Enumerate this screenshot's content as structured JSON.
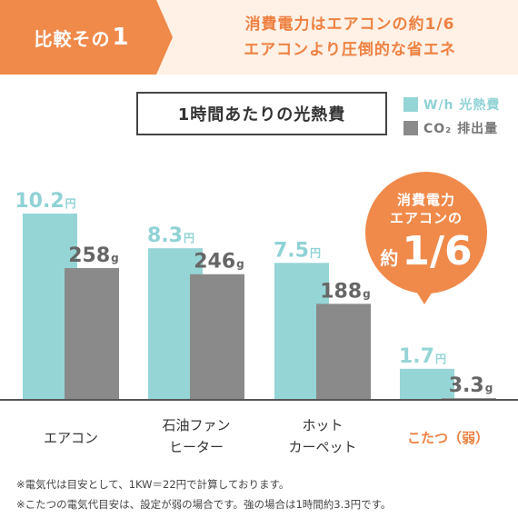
{
  "header": {
    "tag_text": "比較その",
    "tag_number": "1",
    "message_line1": "消費電力はエアコンの約1/6",
    "message_line2": "エアコンより圧倒的な省エネ"
  },
  "colors": {
    "accent": "#f08a4b",
    "teal": "#95d5d6",
    "gray": "#8a8a8a",
    "header_bg": "#fff1e6"
  },
  "callout": {
    "line1": "消費電力",
    "line2": "エアコンの",
    "prefix": "約",
    "big": "1/6"
  },
  "chart_data": {
    "type": "bar",
    "title": "1時間あたりの光熱費",
    "categories": [
      [
        "エアコン"
      ],
      [
        "石油ファン",
        "ヒーター"
      ],
      [
        "ホット",
        "カーペット"
      ],
      [
        "こたつ（弱）"
      ]
    ],
    "highlight_category_index": 3,
    "series": [
      {
        "name": "W/h 光熱費",
        "color": "#95d5d6",
        "values": [
          10.2,
          8.3,
          7.5,
          1.7
        ],
        "value_labels": [
          "10.2",
          "8.3",
          "7.5",
          "1.7"
        ],
        "unit": "円"
      },
      {
        "name": "CO₂ 排出量",
        "color": "#8a8a8a",
        "values": [
          258,
          246,
          188,
          3.3
        ],
        "value_labels": [
          "258",
          "246",
          "188",
          "3.3"
        ],
        "unit": "g"
      }
    ],
    "legend_position": "top-right",
    "grid": false
  },
  "notes": [
    "※電気代は目安として、1KW＝22円で計算しております。",
    "※こたつの電気代目安は、設定が弱の場合です。強の場合は1時間約3.3円です。"
  ]
}
